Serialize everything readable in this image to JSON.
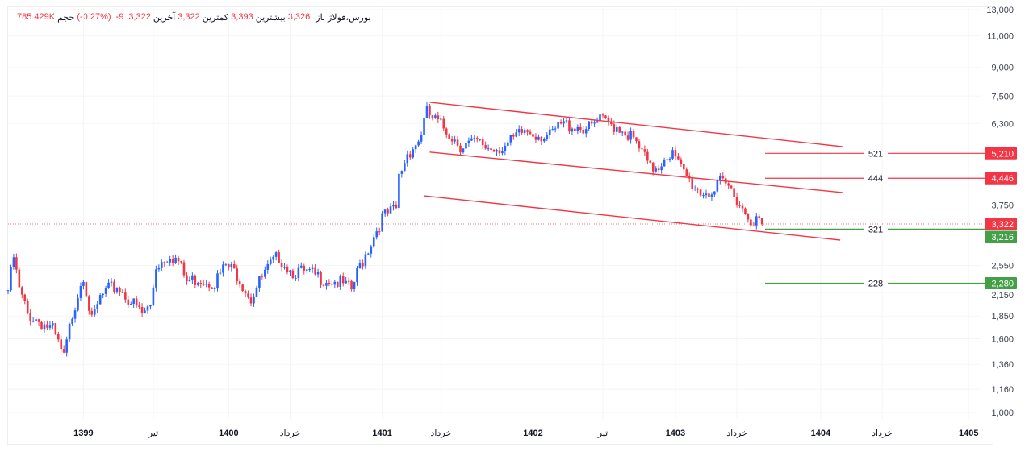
{
  "header": {
    "symbol": "بورس",
    "name": "فولاژ،",
    "open_label": "باز",
    "open": "3,326",
    "high_label": "بیشترین",
    "high": "3,393",
    "low_label": "کمترین",
    "low": "3,322",
    "last_label": "آخرین",
    "last": "3,322",
    "change": "-9",
    "change_pct": "(-0.27%)",
    "volume_label": "حجم",
    "volume": "785.429K"
  },
  "colors": {
    "up": "#2962ff",
    "down": "#f23645",
    "support": "#43a047",
    "resistance": "#f23645",
    "channel": "#f23645"
  },
  "chart_data": {
    "type": "candlestick",
    "title": "فولاژ، بورس",
    "scale": "log",
    "ylim": [
      1000,
      13000
    ],
    "y_ticks": [
      "13,000",
      "11,000",
      "9,000",
      "7,500",
      "6,300",
      "3,750",
      "2,550",
      "2,150",
      "1,850",
      "1,600",
      "1,360",
      "1,160",
      "1,000"
    ],
    "y_tick_values": [
      13000,
      11000,
      9000,
      7500,
      6300,
      3750,
      2550,
      2150,
      1850,
      1600,
      1360,
      1160,
      1000
    ],
    "x_ticks": [
      {
        "label": "1399",
        "week": 27,
        "bold": true
      },
      {
        "label": "تیر",
        "week": 52,
        "bold": false
      },
      {
        "label": "1400",
        "week": 79,
        "bold": true
      },
      {
        "label": "خرداد",
        "week": 101,
        "bold": false
      },
      {
        "label": "1401",
        "week": 134,
        "bold": true
      },
      {
        "label": "خرداد",
        "week": 155,
        "bold": false
      },
      {
        "label": "1402",
        "week": 188,
        "bold": true
      },
      {
        "label": "تیر",
        "week": 213,
        "bold": false
      },
      {
        "label": "1403",
        "week": 239,
        "bold": true
      },
      {
        "label": "خرداد",
        "week": 261,
        "bold": false
      },
      {
        "label": "1404",
        "week": 291,
        "bold": true
      },
      {
        "label": "خرداد",
        "week": 313,
        "bold": false
      },
      {
        "label": "1405",
        "week": 344,
        "bold": true
      }
    ],
    "price_path": [
      [
        0,
        2181
      ],
      [
        2,
        2681
      ],
      [
        4,
        2181
      ],
      [
        7,
        1872
      ],
      [
        12,
        1777
      ],
      [
        16,
        1689
      ],
      [
        20,
        1411
      ],
      [
        23,
        1872
      ],
      [
        26,
        2297
      ],
      [
        27,
        2418
      ],
      [
        30,
        1777
      ],
      [
        33,
        2072
      ],
      [
        36,
        2181
      ],
      [
        39,
        2239
      ],
      [
        43,
        2072
      ],
      [
        48,
        1872
      ],
      [
        51,
        1970
      ],
      [
        53,
        2545
      ],
      [
        58,
        2749
      ],
      [
        61,
        2612
      ],
      [
        64,
        2297
      ],
      [
        68,
        2356
      ],
      [
        74,
        2297
      ],
      [
        78,
        2545
      ],
      [
        82,
        2418
      ],
      [
        87,
        2072
      ],
      [
        90,
        2297
      ],
      [
        94,
        2545
      ],
      [
        97,
        2707
      ],
      [
        101,
        2481
      ],
      [
        107,
        2418
      ],
      [
        113,
        2356
      ],
      [
        118,
        2297
      ],
      [
        123,
        2181
      ],
      [
        126,
        2545
      ],
      [
        130,
        2969
      ],
      [
        134,
        3462
      ],
      [
        139,
        3644
      ],
      [
        140,
        4473
      ],
      [
        143,
        5218
      ],
      [
        147,
        5635
      ],
      [
        150,
        6744
      ],
      [
        153,
        6404
      ],
      [
        158,
        5930
      ],
      [
        162,
        5493
      ],
      [
        168,
        5550
      ],
      [
        173,
        5380
      ],
      [
        179,
        5493
      ],
      [
        185,
        6024
      ],
      [
        189,
        5930
      ],
      [
        194,
        5784
      ],
      [
        198,
        6245
      ],
      [
        202,
        6245
      ],
      [
        208,
        6090
      ],
      [
        212,
        6404
      ],
      [
        217,
        6245
      ],
      [
        220,
        6090
      ],
      [
        223,
        5784
      ],
      [
        227,
        5218
      ],
      [
        230,
        4710
      ],
      [
        233,
        4830
      ],
      [
        236,
        5218
      ],
      [
        238,
        5160
      ],
      [
        241,
        4710
      ],
      [
        244,
        4362
      ],
      [
        248,
        4079
      ],
      [
        253,
        4079
      ],
      [
        255,
        4290
      ],
      [
        258,
        4200
      ],
      [
        261,
        3935
      ],
      [
        264,
        3553
      ],
      [
        267,
        3420
      ],
      [
        270,
        3322
      ]
    ],
    "last_price": 3322,
    "last_price_label": "3,322",
    "channel_lines": [
      {
        "name": "upper",
        "from": [
          151,
          7209
        ],
        "to": [
          299,
          5435
        ]
      },
      {
        "name": "middle",
        "from": [
          151,
          5250
        ],
        "to": [
          299,
          4058
        ]
      },
      {
        "name": "lower",
        "from": [
          149,
          3974
        ],
        "to": [
          298,
          2999
        ]
      }
    ],
    "levels": [
      {
        "label": "521",
        "price": 5210,
        "badge": "5,210",
        "type": "resistance"
      },
      {
        "label": "444",
        "price": 4446,
        "badge": "4,446",
        "type": "resistance"
      },
      {
        "label": "321",
        "price": 3216,
        "badge": "3,216",
        "type": "support"
      },
      {
        "label": "228",
        "price": 2280,
        "badge": "2,280",
        "type": "support"
      }
    ]
  }
}
